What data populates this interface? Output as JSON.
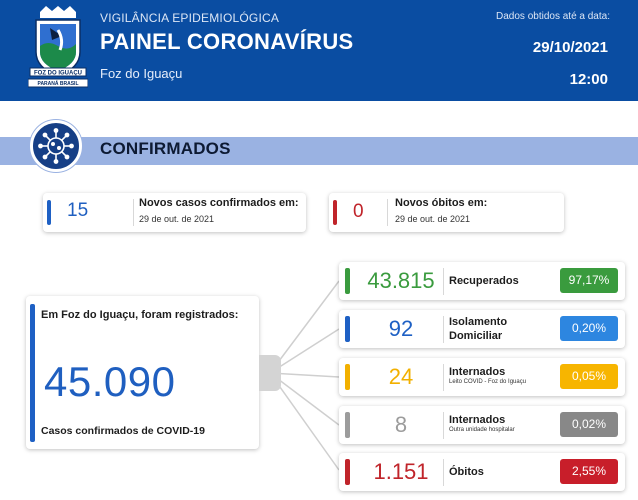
{
  "header": {
    "org": "VIGILÂNCIA EPIDEMIOLÓGICA",
    "title": "PAINEL CORONAVÍRUS",
    "city": "Foz do Iguaçu",
    "data_label": "Dados obtidos até a data:",
    "date": "29/10/2021",
    "time": "12:00",
    "logo": {
      "banner": "FOZ DO IGUAÇU",
      "footer": "PARANÁ   BRASIL"
    }
  },
  "section": {
    "title": "CONFIRMADOS",
    "icon": "virus-icon"
  },
  "new_cases": {
    "value": "15",
    "label": "Novos casos confirmados em:",
    "date": "29 de out. de 2021",
    "color": "#1e60c4"
  },
  "new_deaths": {
    "value": "0",
    "label": "Novos óbitos em:",
    "date": "29 de out. de 2021",
    "color": "#c0242a"
  },
  "total": {
    "heading": "Em Foz do Iguaçu, foram registrados:",
    "value": "45.090",
    "caption": "Casos confirmados de COVID-19"
  },
  "stats": [
    {
      "value": "43.815",
      "label": "Recuperados",
      "label2": "",
      "sub": "",
      "pct": "97,17%",
      "color": "#3a9b3e",
      "pct_color": "#3a9b3e"
    },
    {
      "value": "92",
      "label": "Isolamento",
      "label2": "Domiciliar",
      "sub": "",
      "pct": "0,20%",
      "color": "#1e60c4",
      "pct_color": "#2d86e0"
    },
    {
      "value": "24",
      "label": "Internados",
      "label2": "",
      "sub": "Leito COVID - Foz do Iguaçu",
      "pct": "0,05%",
      "color": "#f2b000",
      "pct_color": "#f7b500"
    },
    {
      "value": "8",
      "label": "Internados",
      "label2": "",
      "sub": "Outra unidade hospitalar",
      "pct": "0,02%",
      "color": "#9c9c9c",
      "pct_color": "#888888"
    },
    {
      "value": "1.151",
      "label": "Óbitos",
      "label2": "",
      "sub": "",
      "pct": "2,55%",
      "color": "#c0242a",
      "pct_color": "#c81e2a"
    }
  ]
}
